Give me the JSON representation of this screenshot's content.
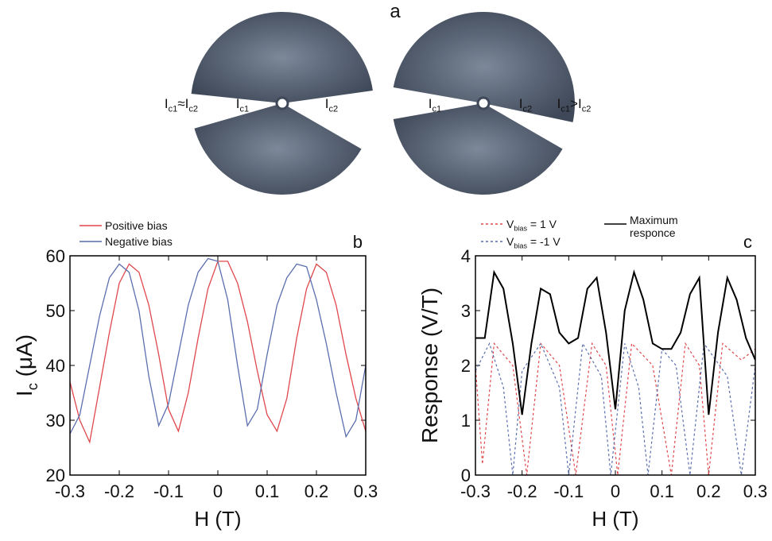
{
  "diagram": {
    "label": "a",
    "left": {
      "outer": "Ic1≈Ic2",
      "inner_left": "Ic1",
      "inner_right": "Ic2"
    },
    "right": {
      "outer": "Ic1>Ic2",
      "inner_left": "Ic1",
      "inner_right": "Ic2"
    }
  },
  "chart_data": [
    {
      "type": "line",
      "label": "b",
      "x_label": "H (T)",
      "y_label": "Ic (μA)",
      "xlim": [
        -0.3,
        0.3
      ],
      "xticks": [
        -0.3,
        -0.2,
        -0.1,
        0,
        0.1,
        0.2,
        0.3
      ],
      "ylim": [
        20,
        60
      ],
      "yticks": [
        20,
        30,
        40,
        50,
        60
      ],
      "x": [
        -0.3,
        -0.28,
        -0.26,
        -0.24,
        -0.22,
        -0.2,
        -0.18,
        -0.16,
        -0.14,
        -0.12,
        -0.1,
        -0.08,
        -0.06,
        -0.04,
        -0.02,
        0,
        0.02,
        0.04,
        0.06,
        0.08,
        0.1,
        0.12,
        0.14,
        0.16,
        0.18,
        0.2,
        0.22,
        0.24,
        0.26,
        0.28,
        0.3
      ],
      "series": [
        {
          "name": "Positive bias",
          "color": "#e0474c",
          "dash": false,
          "values": [
            37,
            30,
            26,
            36,
            46,
            55,
            58.5,
            57,
            51,
            42,
            32,
            28,
            35,
            45,
            54,
            59,
            59,
            55,
            48,
            39,
            31,
            28,
            34,
            45,
            54,
            58.5,
            57,
            51,
            42,
            34,
            28
          ]
        },
        {
          "name": "Negative bias",
          "color": "#5b6fae",
          "dash": false,
          "values": [
            27.5,
            31,
            40,
            49,
            56,
            58.5,
            57,
            50,
            38,
            29,
            33,
            42,
            51,
            57,
            59.5,
            59,
            52,
            40,
            29,
            32,
            42,
            51,
            56,
            58.5,
            58,
            52,
            44,
            35,
            27,
            30,
            40
          ]
        }
      ]
    },
    {
      "type": "line",
      "label": "c",
      "x_label": "H (T)",
      "y_label": "Response (V/T)",
      "xlim": [
        -0.3,
        0.3
      ],
      "xticks": [
        -0.3,
        -0.2,
        -0.1,
        0,
        0.1,
        0.2,
        0.3
      ],
      "ylim": [
        0,
        4
      ],
      "yticks": [
        0,
        1,
        2,
        3,
        4
      ],
      "series": [
        {
          "name": "Vbias = 1 V",
          "color": "#e0474c",
          "dash": true,
          "x": [
            -0.3,
            -0.285,
            -0.26,
            -0.22,
            -0.19,
            -0.16,
            -0.12,
            -0.085,
            -0.05,
            -0.02,
            0.005,
            0.035,
            0.08,
            0.12,
            0.15,
            0.18,
            0.2,
            0.23,
            0.27,
            0.3
          ],
          "values": [
            2.0,
            0.2,
            2.4,
            2.0,
            0,
            2.4,
            2.0,
            0,
            2.4,
            2.0,
            0,
            2.4,
            2.0,
            0,
            2.4,
            2.0,
            0,
            2.4,
            2.1,
            2.3
          ]
        },
        {
          "name": "Vbias = -1 V",
          "color": "#5b6fae",
          "dash": true,
          "x": [
            -0.3,
            -0.27,
            -0.24,
            -0.22,
            -0.2,
            -0.16,
            -0.12,
            -0.1,
            -0.07,
            -0.03,
            -0.01,
            0.02,
            0.05,
            0.07,
            0.1,
            0.13,
            0.16,
            0.19,
            0.24,
            0.27,
            0.3
          ],
          "values": [
            1.9,
            2.4,
            1.6,
            0,
            1.9,
            2.4,
            1.6,
            0,
            2.4,
            1.8,
            0,
            2.4,
            1.6,
            0,
            2.3,
            2.0,
            0,
            2.4,
            1.8,
            0,
            2.0
          ]
        },
        {
          "name": "Maximum responce",
          "color": "#000000",
          "dash": false,
          "x": [
            -0.3,
            -0.28,
            -0.26,
            -0.24,
            -0.22,
            -0.2,
            -0.18,
            -0.16,
            -0.14,
            -0.12,
            -0.1,
            -0.08,
            -0.06,
            -0.04,
            -0.02,
            0,
            0.02,
            0.04,
            0.06,
            0.08,
            0.1,
            0.12,
            0.14,
            0.16,
            0.18,
            0.2,
            0.22,
            0.24,
            0.26,
            0.28,
            0.3
          ],
          "values": [
            2.5,
            2.5,
            3.7,
            3.4,
            2.4,
            1.1,
            2.4,
            3.4,
            3.3,
            2.6,
            2.4,
            2.5,
            3.4,
            3.6,
            2.6,
            1.2,
            3.0,
            3.7,
            3.2,
            2.4,
            2.3,
            2.3,
            2.6,
            3.3,
            3.6,
            1.1,
            2.6,
            3.6,
            3.2,
            2.5,
            2.1
          ]
        }
      ]
    }
  ]
}
